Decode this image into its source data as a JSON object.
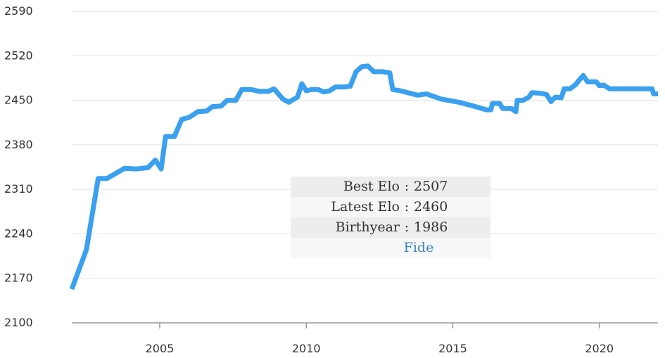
{
  "chart_data": {
    "type": "line",
    "title": "",
    "xlabel": "",
    "ylabel": "",
    "xlim": [
      2002,
      2022
    ],
    "ylim": [
      2100,
      2590
    ],
    "x_ticks": [
      2005,
      2010,
      2015,
      2020
    ],
    "y_ticks": [
      2100,
      2170,
      2240,
      2310,
      2380,
      2450,
      2520,
      2590
    ],
    "grid": "horizontal",
    "line_color": "#3aa0f0",
    "series": [
      {
        "name": "",
        "points": [
          [
            2002.0,
            2153
          ],
          [
            2002.5,
            2215
          ],
          [
            2002.9,
            2327
          ],
          [
            2003.2,
            2327
          ],
          [
            2003.5,
            2335
          ],
          [
            2003.8,
            2343
          ],
          [
            2004.2,
            2342
          ],
          [
            2004.6,
            2344
          ],
          [
            2004.85,
            2356
          ],
          [
            2005.05,
            2342
          ],
          [
            2005.2,
            2393
          ],
          [
            2005.5,
            2393
          ],
          [
            2005.75,
            2420
          ],
          [
            2006.0,
            2423
          ],
          [
            2006.3,
            2432
          ],
          [
            2006.6,
            2433
          ],
          [
            2006.8,
            2440
          ],
          [
            2007.1,
            2441
          ],
          [
            2007.3,
            2450
          ],
          [
            2007.6,
            2450
          ],
          [
            2007.8,
            2467
          ],
          [
            2008.1,
            2467
          ],
          [
            2008.4,
            2464
          ],
          [
            2008.7,
            2464
          ],
          [
            2008.9,
            2468
          ],
          [
            2009.2,
            2452
          ],
          [
            2009.4,
            2447
          ],
          [
            2009.7,
            2455
          ],
          [
            2009.85,
            2476
          ],
          [
            2010.0,
            2465
          ],
          [
            2010.2,
            2467
          ],
          [
            2010.4,
            2467
          ],
          [
            2010.6,
            2463
          ],
          [
            2010.8,
            2465
          ],
          [
            2011.0,
            2471
          ],
          [
            2011.3,
            2471
          ],
          [
            2011.5,
            2472
          ],
          [
            2011.7,
            2495
          ],
          [
            2011.9,
            2503
          ],
          [
            2012.1,
            2504
          ],
          [
            2012.3,
            2495
          ],
          [
            2012.6,
            2495
          ],
          [
            2012.85,
            2493
          ],
          [
            2012.95,
            2467
          ],
          [
            2013.2,
            2465
          ],
          [
            2013.8,
            2458
          ],
          [
            2014.1,
            2460
          ],
          [
            2014.6,
            2452
          ],
          [
            2015.2,
            2447
          ],
          [
            2015.7,
            2441
          ],
          [
            2016.15,
            2435
          ],
          [
            2016.3,
            2435
          ],
          [
            2016.35,
            2445
          ],
          [
            2016.6,
            2445
          ],
          [
            2016.7,
            2437
          ],
          [
            2017.0,
            2437
          ],
          [
            2017.15,
            2432
          ],
          [
            2017.2,
            2450
          ],
          [
            2017.4,
            2450
          ],
          [
            2017.6,
            2455
          ],
          [
            2017.7,
            2462
          ],
          [
            2018.0,
            2461
          ],
          [
            2018.2,
            2459
          ],
          [
            2018.35,
            2448
          ],
          [
            2018.5,
            2455
          ],
          [
            2018.7,
            2454
          ],
          [
            2018.8,
            2468
          ],
          [
            2019.0,
            2468
          ],
          [
            2019.2,
            2475
          ],
          [
            2019.3,
            2481
          ],
          [
            2019.45,
            2489
          ],
          [
            2019.6,
            2479
          ],
          [
            2019.9,
            2479
          ],
          [
            2020.0,
            2473
          ],
          [
            2020.15,
            2474
          ],
          [
            2020.35,
            2468
          ],
          [
            2021.6,
            2468
          ],
          [
            2021.8,
            2468
          ],
          [
            2021.85,
            2460
          ],
          [
            2022.0,
            2460
          ]
        ]
      }
    ]
  },
  "info": {
    "best_label": "Best Elo",
    "best_value": "2507",
    "latest_label": "Latest Elo",
    "latest_value": "2460",
    "birth_label": "Birthyear",
    "birth_value": "1986",
    "separator": ":",
    "link_label": "Fide"
  }
}
